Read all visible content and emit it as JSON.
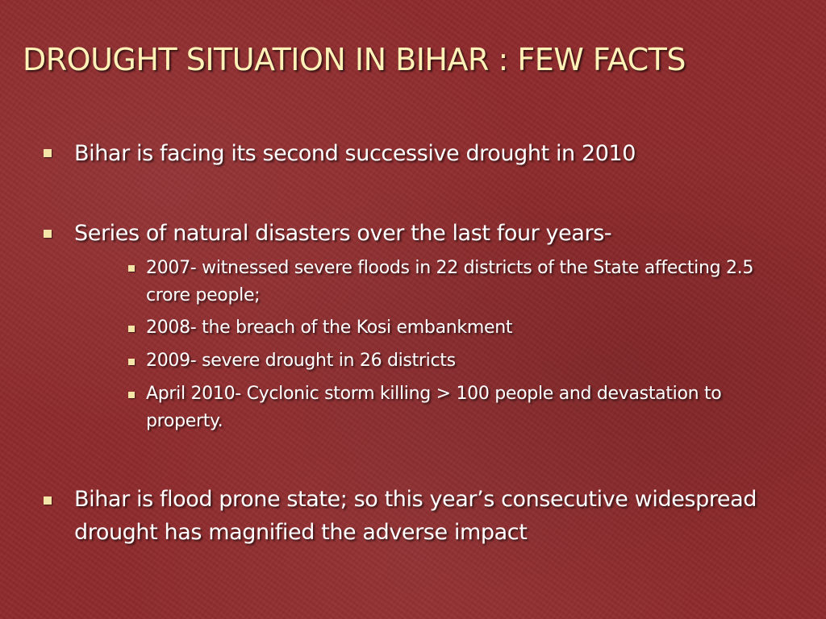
{
  "slide": {
    "title": "DROUGHT SITUATION IN BIHAR : FEW FACTS",
    "bullets": [
      {
        "text": "Bihar is facing its second successive drought in 2010"
      },
      {
        "text": "Series of natural disasters over the last four years-",
        "subbullets": [
          {
            "text": "2007- witnessed severe floods in 22 districts of the State affecting 2.5 crore people;"
          },
          {
            "text": "2008- the breach of the Kosi embankment"
          },
          {
            "text": "2009- severe drought in 26 districts"
          },
          {
            "text": "April 2010- Cyclonic storm killing > 100 people and devastation to property."
          }
        ]
      },
      {
        "text": "Bihar is flood prone state; so this year’s consecutive widespread drought has magnified the adverse impact"
      }
    ]
  },
  "colors": {
    "background": "#8e2a2c",
    "title": "#fff2b8",
    "text": "#ffffff",
    "bullet_marker": "#f3e6a8"
  },
  "icons": {
    "bullet_marker": "square-bullet-icon"
  }
}
